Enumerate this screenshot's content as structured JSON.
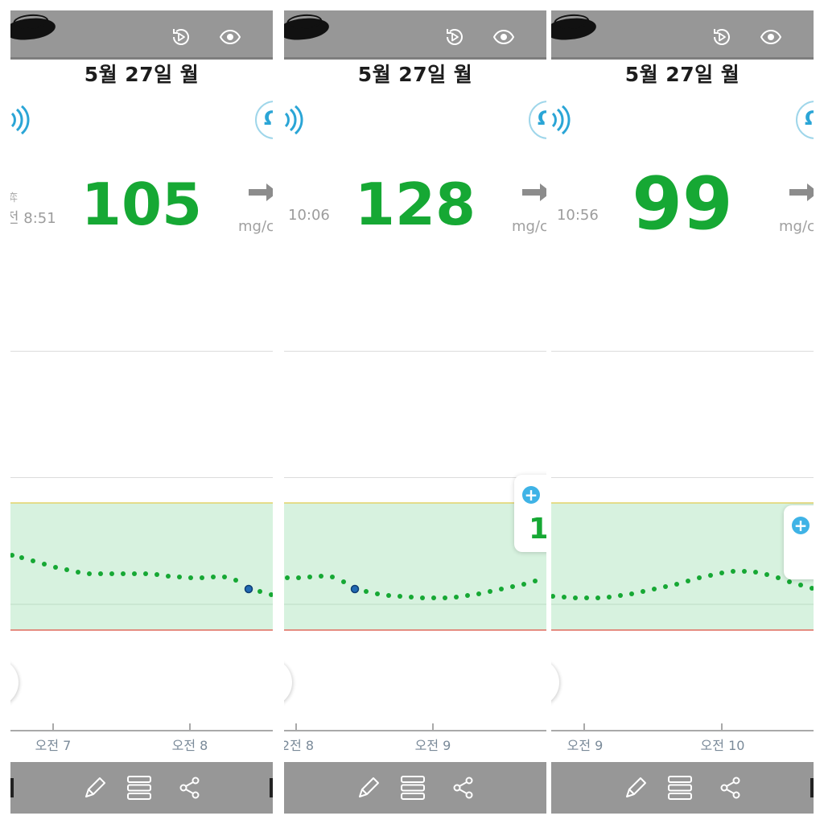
{
  "colors": {
    "reading": "#16a834",
    "target_band": "#d7f2df",
    "high_line": "#e4d36a",
    "low_line": "#e16b5f",
    "dots": "#16a834",
    "marker": "#2169b3",
    "bar": "#979797",
    "accent": "#3fb3e6"
  },
  "icons": {
    "top_bar": [
      "replay-icon",
      "eye-icon"
    ],
    "header": [
      "signal-icon",
      "bell-icon"
    ],
    "trend": "arrow-right-icon",
    "bottom_bar": [
      "pencil-icon",
      "list-icon",
      "share-icon"
    ],
    "card": "plus-icon"
  },
  "panels": [
    {
      "date": "5월 27일 월",
      "time": "전 8:51",
      "prev_label": "弈",
      "reading": "105",
      "reading_size": "normal",
      "unit": "mg/c",
      "ticks": [
        {
          "label": "오전 7"
        },
        {
          "label": "오전 8"
        }
      ],
      "card_value": null
    },
    {
      "date": "5월 27일 월",
      "time": "10:06",
      "prev_label": "",
      "reading": "128",
      "reading_size": "normal",
      "unit": "mg/c",
      "ticks": [
        {
          "label": "2전 8"
        },
        {
          "label": "오전 9"
        }
      ],
      "card_value": "1"
    },
    {
      "date": "5월 27일 월",
      "time": "! 10:56",
      "prev_label": "",
      "reading": "99",
      "reading_size": "large",
      "unit": "mg/c",
      "ticks": [
        {
          "label": "오전 9"
        },
        {
          "label": "오전 10"
        }
      ],
      "card_value": ""
    }
  ]
}
